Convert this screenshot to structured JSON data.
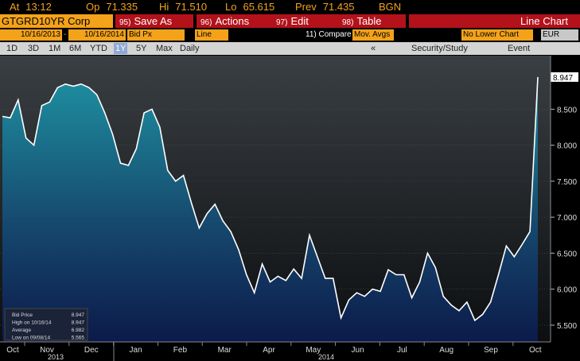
{
  "quote_bar": [
    {
      "label": "At",
      "value": "13:12"
    },
    {
      "label": "Op",
      "value": "71.335"
    },
    {
      "label": "Hi",
      "value": "71.510"
    },
    {
      "label": "Lo",
      "value": "65.615"
    },
    {
      "label": "Prev",
      "value": "71.435"
    },
    {
      "label": "BGN"
    }
  ],
  "toolbar": {
    "security": "GTGRD10YR Corp",
    "actions": [
      {
        "num": "95)",
        "label": "Save As"
      },
      {
        "num": "96)",
        "label": "Actions"
      },
      {
        "num": "97)",
        "label": "Edit"
      },
      {
        "num": "98)",
        "label": "Table"
      }
    ],
    "view": "Line Chart"
  },
  "settings": {
    "start_date": "10/16/2013",
    "separator": "-",
    "end_date": "10/16/2014",
    "field": "Bid Px",
    "style": "Line",
    "compare": "11) Compare",
    "mov_avgs": "Mov. Avgs",
    "lower": "No Lower Chart",
    "currency": "EUR"
  },
  "range_bar": {
    "periods": [
      "1D",
      "3D",
      "1M",
      "6M",
      "YTD",
      "1Y",
      "5Y",
      "Max"
    ],
    "frequency": "Daily",
    "collapse": "«",
    "tools": [
      "Security/Study",
      "Event"
    ]
  },
  "chart_data": {
    "type": "line",
    "months": [
      "Oct",
      "Nov",
      "Dec",
      "Jan",
      "Feb",
      "Mar",
      "Apr",
      "May",
      "Jun",
      "Jul",
      "Aug",
      "Sep",
      "Oct"
    ],
    "years": [
      "2013",
      "2014"
    ],
    "series": [
      {
        "name": "Bid Price",
        "color": "#ffffff",
        "values": [
          8.4,
          8.38,
          8.63,
          8.1,
          8.0,
          8.55,
          8.6,
          8.8,
          8.85,
          8.82,
          8.85,
          8.8,
          8.7,
          8.45,
          8.15,
          7.75,
          7.72,
          7.95,
          8.45,
          8.5,
          8.25,
          7.65,
          7.5,
          7.58,
          7.2,
          6.85,
          7.05,
          7.18,
          6.95,
          6.8,
          6.55,
          6.2,
          5.95,
          6.35,
          6.1,
          6.18,
          6.12,
          6.28,
          6.15,
          6.75,
          6.45,
          6.15,
          6.15,
          5.6,
          5.85,
          5.95,
          5.9,
          6.0,
          5.97,
          6.27,
          6.2,
          6.2,
          5.88,
          6.1,
          6.5,
          6.3,
          5.9,
          5.78,
          5.7,
          5.82,
          5.565,
          5.65,
          5.82,
          6.2,
          6.6,
          6.45,
          6.62,
          6.8,
          8.947
        ]
      }
    ],
    "ylim": [
      5.267,
      9.244
    ],
    "yticks": [
      {
        "value": 5.5,
        "label": "5.500"
      },
      {
        "value": 6,
        "label": "6.000"
      },
      {
        "value": 6.5,
        "label": "6.500"
      },
      {
        "value": 7,
        "label": "7.000"
      },
      {
        "value": 7.5,
        "label": "7.500"
      },
      {
        "value": 8,
        "label": "8.000"
      },
      {
        "value": 8.5,
        "label": "8.500"
      }
    ],
    "legend": [
      {
        "label": "Bid Price",
        "value": 8.947
      },
      {
        "label": "High on 10/16/14",
        "value": 8.947
      },
      {
        "label": "Average",
        "value": 6.982
      },
      {
        "label": "Low on 09/08/14",
        "value": 5.565
      }
    ]
  }
}
